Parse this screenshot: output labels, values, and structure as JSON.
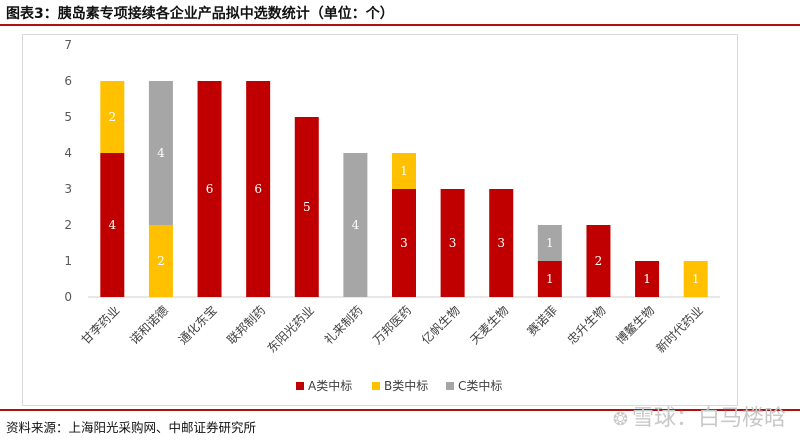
{
  "header": {
    "title": "图表3：胰岛素专项接续各企业产品拟中选数统计（单位：个）"
  },
  "footer": {
    "source": "资料来源：上海阳光采购网、中邮证券研究所"
  },
  "watermark": {
    "text": "雪球：白马楼晗"
  },
  "colors": {
    "A": "#c00000",
    "B": "#ffc000",
    "C": "#a6a6a6",
    "label_text": "#ffffff",
    "axis_text": "#595959",
    "rule": "#b01010"
  },
  "chart_data": {
    "type": "bar",
    "stacked": true,
    "categories": [
      "甘李药业",
      "诺和诺德",
      "通化东宝",
      "联邦制药",
      "东阳光药业",
      "礼来制药",
      "万邦医药",
      "亿帆生物",
      "天麦生物",
      "赛诺菲",
      "忠升生物",
      "博鳌生物",
      "新时代药业"
    ],
    "series": [
      {
        "name": "A类中标",
        "color": "#c00000",
        "values": [
          4,
          0,
          6,
          6,
          5,
          0,
          3,
          3,
          3,
          1,
          2,
          1,
          0
        ]
      },
      {
        "name": "B类中标",
        "color": "#ffc000",
        "values": [
          2,
          2,
          0,
          0,
          0,
          0,
          1,
          0,
          0,
          0,
          0,
          0,
          1
        ]
      },
      {
        "name": "C类中标",
        "color": "#a6a6a6",
        "values": [
          0,
          4,
          0,
          0,
          0,
          4,
          0,
          0,
          0,
          1,
          0,
          0,
          0
        ]
      }
    ],
    "ylim": [
      0,
      7
    ],
    "yticks": [
      0,
      1,
      2,
      3,
      4,
      5,
      6,
      7
    ],
    "grid": false,
    "legend_position": "bottom-center",
    "data_labels": true
  }
}
